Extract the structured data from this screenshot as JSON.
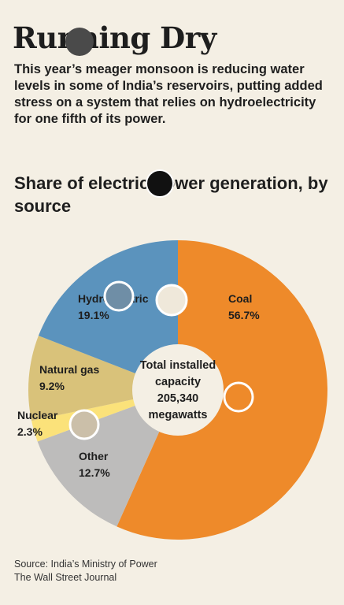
{
  "headline": "Running Dry",
  "dek": "This year’s meager monsoon is reducing water levels in some of India’s reservoirs, putting added stress on a system that relies on hydroelectricity for one fifth of its power.",
  "chart_data": {
    "type": "pie",
    "title": "Share of electric power generation, by source",
    "slices": [
      {
        "label": "Coal",
        "value": 56.7,
        "display": "56.7%",
        "color": "#ee8a2a"
      },
      {
        "label": "Other",
        "value": 12.7,
        "display": "12.7%",
        "color": "#bdbcbb"
      },
      {
        "label": "Nuclear",
        "value": 2.3,
        "display": "2.3%",
        "color": "#fbe27a"
      },
      {
        "label": "Natural gas",
        "value": 9.2,
        "display": "9.2%",
        "color": "#d9c27a"
      },
      {
        "label": "Hydroelectric",
        "value": 19.1,
        "display": "19.1%",
        "color": "#5b93bd"
      }
    ],
    "center_label": [
      "Total installed",
      "capacity",
      "205,340",
      "megawatts"
    ]
  },
  "source": [
    "Source: India’s Ministry of Power",
    "The Wall Street Journal"
  ]
}
